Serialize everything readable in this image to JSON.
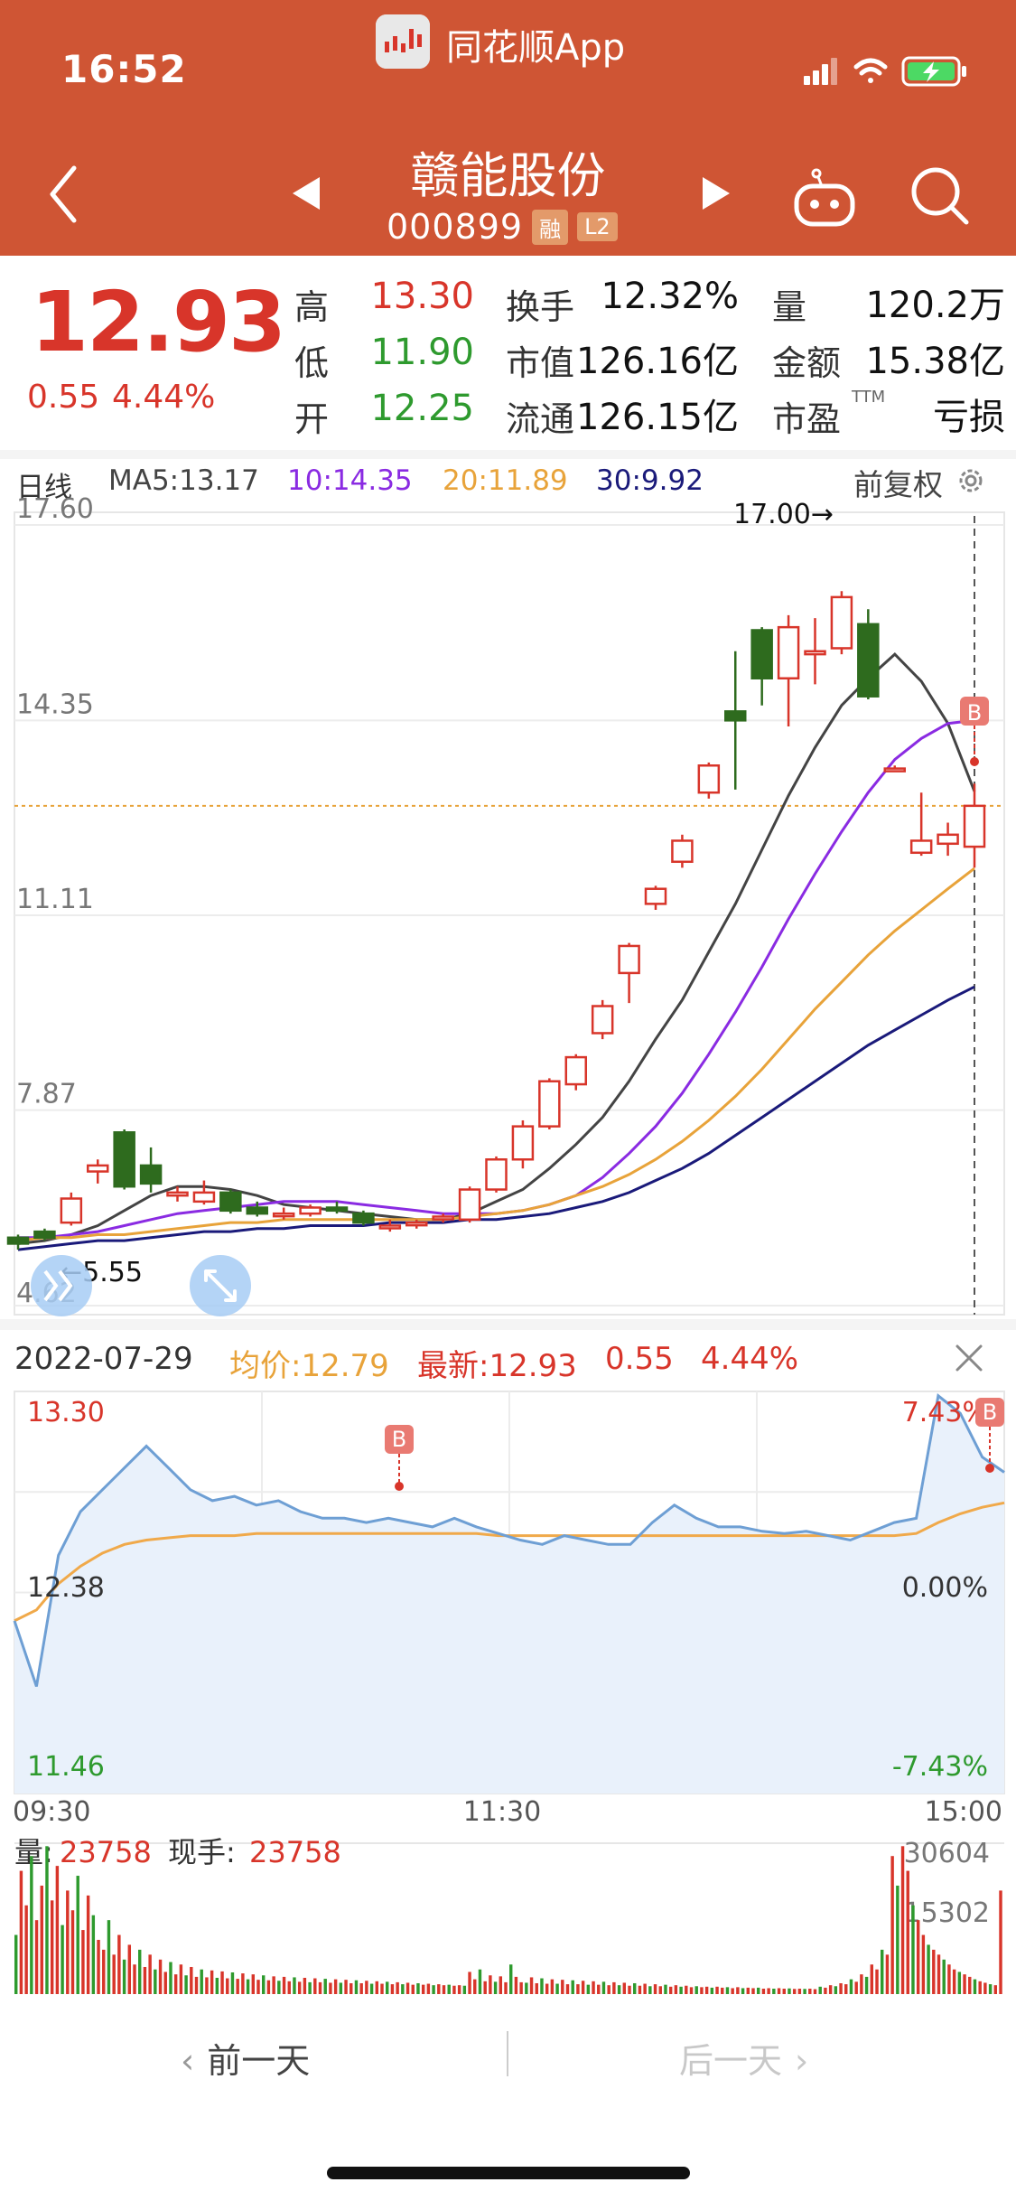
{
  "status_bar": {
    "time": "16:52"
  },
  "app": {
    "name": "同花顺App"
  },
  "stock": {
    "name": "赣能股份",
    "code": "000899",
    "tags": [
      "融",
      "L2"
    ]
  },
  "quote": {
    "price": "12.93",
    "change": "0.55",
    "change_pct": "4.44%",
    "fields": [
      {
        "label": "高",
        "value": "13.30",
        "color": "#d8352a"
      },
      {
        "label": "低",
        "value": "11.90",
        "color": "#2e9a2e"
      },
      {
        "label": "开",
        "value": "12.25",
        "color": "#2e9a2e"
      },
      {
        "label": "换手",
        "value": "12.32%",
        "color": "#111111"
      },
      {
        "label": "市值",
        "value": "126.16亿",
        "color": "#111111"
      },
      {
        "label": "流通",
        "value": "126.15亿",
        "color": "#111111"
      },
      {
        "label": "量",
        "value": "120.2万",
        "color": "#111111"
      },
      {
        "label": "金额",
        "value": "15.38亿",
        "color": "#111111"
      },
      {
        "label": "市盈",
        "value": "亏损",
        "color": "#111111",
        "sup": "TTM"
      }
    ]
  },
  "kline": {
    "period": "日线",
    "ma": [
      {
        "label": "MA5:13.17",
        "color": "#444444"
      },
      {
        "label": "10:14.35",
        "color": "#8a2be2"
      },
      {
        "label": "20:11.89",
        "color": "#e8a33a"
      },
      {
        "label": "30:9.92",
        "color": "#1a1a7a"
      }
    ],
    "adjust": "前复权",
    "y_ticks": [
      "17.60",
      "14.35",
      "11.11",
      "7.87",
      "4.62"
    ],
    "y_range": [
      4.62,
      17.6
    ],
    "high_annotation": "17.00→",
    "low_annotation": "←5.55",
    "buy_marker": "B"
  },
  "chart_data": [
    {
      "type": "candlestick",
      "title": "日线",
      "ylim": [
        4.62,
        17.6
      ],
      "y_ticks": [
        17.6,
        14.35,
        11.11,
        7.87,
        4.62
      ],
      "annotations": [
        "17.00→",
        "←5.55"
      ],
      "candles": [
        {
          "o": 5.75,
          "h": 5.8,
          "c": 5.65,
          "l": 5.55
        },
        {
          "o": 5.85,
          "h": 5.9,
          "c": 5.75,
          "l": 5.7
        },
        {
          "o": 6.0,
          "h": 6.5,
          "c": 6.4,
          "l": 5.95
        },
        {
          "o": 6.85,
          "h": 7.05,
          "c": 6.95,
          "l": 6.65
        },
        {
          "o": 7.5,
          "h": 7.55,
          "c": 6.6,
          "l": 6.55
        },
        {
          "o": 6.95,
          "h": 7.25,
          "c": 6.65,
          "l": 6.5
        },
        {
          "o": 6.45,
          "h": 6.6,
          "c": 6.5,
          "l": 6.35
        },
        {
          "o": 6.35,
          "h": 6.7,
          "c": 6.5,
          "l": 6.3
        },
        {
          "o": 6.5,
          "h": 6.55,
          "c": 6.2,
          "l": 6.15
        },
        {
          "o": 6.25,
          "h": 6.35,
          "c": 6.15,
          "l": 6.1
        },
        {
          "o": 6.15,
          "h": 6.25,
          "c": 6.15,
          "l": 6.05
        },
        {
          "o": 6.15,
          "h": 6.3,
          "c": 6.25,
          "l": 6.1
        },
        {
          "o": 6.25,
          "h": 6.35,
          "c": 6.2,
          "l": 6.15
        },
        {
          "o": 6.15,
          "h": 6.2,
          "c": 6.0,
          "l": 5.95
        },
        {
          "o": 5.95,
          "h": 6.05,
          "c": 5.95,
          "l": 5.85
        },
        {
          "o": 6.0,
          "h": 6.05,
          "c": 6.0,
          "l": 5.9
        },
        {
          "o": 6.1,
          "h": 6.15,
          "c": 6.1,
          "l": 6.0
        },
        {
          "o": 6.05,
          "h": 6.6,
          "c": 6.55,
          "l": 6.0
        },
        {
          "o": 6.55,
          "h": 7.1,
          "c": 7.05,
          "l": 6.5
        },
        {
          "o": 7.05,
          "h": 7.7,
          "c": 7.6,
          "l": 6.9
        },
        {
          "o": 7.6,
          "h": 8.4,
          "c": 8.35,
          "l": 7.55
        },
        {
          "o": 8.3,
          "h": 8.8,
          "c": 8.75,
          "l": 8.2
        },
        {
          "o": 9.15,
          "h": 9.7,
          "c": 9.6,
          "l": 9.05
        },
        {
          "o": 10.15,
          "h": 10.65,
          "c": 10.6,
          "l": 9.65
        },
        {
          "o": 11.3,
          "h": 11.6,
          "c": 11.55,
          "l": 11.2
        },
        {
          "o": 12.0,
          "h": 12.45,
          "c": 12.35,
          "l": 11.9
        },
        {
          "o": 13.15,
          "h": 13.65,
          "c": 13.6,
          "l": 13.05
        },
        {
          "o": 14.5,
          "h": 15.5,
          "c": 14.35,
          "l": 13.2
        },
        {
          "o": 15.85,
          "h": 15.9,
          "c": 15.05,
          "l": 14.6
        },
        {
          "o": 15.05,
          "h": 16.1,
          "c": 15.9,
          "l": 14.25
        },
        {
          "o": 15.45,
          "h": 16.05,
          "c": 15.5,
          "l": 14.95
        },
        {
          "o": 15.55,
          "h": 16.5,
          "c": 16.4,
          "l": 15.45
        },
        {
          "o": 15.95,
          "h": 16.2,
          "c": 14.75,
          "l": 14.7
        },
        {
          "o": 13.55,
          "h": 13.6,
          "c": 13.55,
          "l": 13.5
        },
        {
          "o": 12.15,
          "h": 13.15,
          "c": 12.35,
          "l": 12.1
        },
        {
          "o": 12.3,
          "h": 12.65,
          "c": 12.45,
          "l": 12.1
        },
        {
          "o": 12.25,
          "h": 13.3,
          "c": 12.93,
          "l": 11.9
        }
      ],
      "series": [
        {
          "name": "MA5",
          "values": [
            5.65,
            5.7,
            5.8,
            5.95,
            6.2,
            6.45,
            6.6,
            6.6,
            6.55,
            6.45,
            6.3,
            6.25,
            6.2,
            6.15,
            6.1,
            6.05,
            6.05,
            6.15,
            6.35,
            6.55,
            6.9,
            7.3,
            7.75,
            8.35,
            9.05,
            9.7,
            10.5,
            11.3,
            12.2,
            13.1,
            13.9,
            14.6,
            15.05,
            15.45,
            15.0,
            14.3,
            13.17
          ]
        },
        {
          "name": "MA10",
          "values": [
            5.75,
            5.75,
            5.8,
            5.85,
            5.95,
            6.05,
            6.15,
            6.2,
            6.25,
            6.3,
            6.35,
            6.35,
            6.35,
            6.3,
            6.25,
            6.2,
            6.15,
            6.15,
            6.15,
            6.2,
            6.3,
            6.45,
            6.75,
            7.15,
            7.6,
            8.15,
            8.8,
            9.5,
            10.25,
            11.05,
            11.8,
            12.5,
            13.15,
            13.7,
            14.05,
            14.3,
            14.35
          ]
        },
        {
          "name": "MA20",
          "values": [
            5.7,
            5.75,
            5.75,
            5.8,
            5.8,
            5.85,
            5.9,
            5.95,
            6.0,
            6.0,
            6.05,
            6.05,
            6.05,
            6.05,
            6.05,
            6.05,
            6.05,
            6.1,
            6.15,
            6.2,
            6.3,
            6.45,
            6.6,
            6.8,
            7.05,
            7.35,
            7.7,
            8.1,
            8.55,
            9.05,
            9.55,
            10.0,
            10.45,
            10.85,
            11.2,
            11.55,
            11.89
          ]
        },
        {
          "name": "MA30",
          "values": [
            5.55,
            5.6,
            5.65,
            5.7,
            5.7,
            5.75,
            5.8,
            5.85,
            5.85,
            5.9,
            5.9,
            5.95,
            5.95,
            5.95,
            6.0,
            6.0,
            6.0,
            6.05,
            6.05,
            6.1,
            6.15,
            6.25,
            6.35,
            6.5,
            6.7,
            6.9,
            7.15,
            7.45,
            7.75,
            8.05,
            8.35,
            8.65,
            8.95,
            9.2,
            9.45,
            9.7,
            9.92
          ]
        }
      ]
    },
    {
      "type": "line",
      "title": "2022-07-29",
      "x_ticks": [
        "09:30",
        "11:30",
        "15:00"
      ],
      "y_left_ticks": [
        "13.30",
        "12.38",
        "11.46"
      ],
      "y_right_ticks": [
        "7.43%",
        "0.00%",
        "-7.43%"
      ],
      "ylim": [
        11.46,
        13.3
      ],
      "series": [
        {
          "name": "最新",
          "values": [
            12.25,
            11.95,
            12.55,
            12.75,
            12.85,
            12.95,
            13.05,
            12.95,
            12.85,
            12.8,
            12.82,
            12.78,
            12.8,
            12.75,
            12.72,
            12.72,
            12.7,
            12.72,
            12.7,
            12.68,
            12.72,
            12.68,
            12.65,
            12.62,
            12.6,
            12.64,
            12.62,
            12.6,
            12.6,
            12.7,
            12.78,
            12.72,
            12.68,
            12.68,
            12.66,
            12.65,
            12.66,
            12.64,
            12.62,
            12.66,
            12.7,
            12.72,
            13.28,
            13.2,
            13.0,
            12.93
          ]
        },
        {
          "name": "均价",
          "values": [
            12.25,
            12.3,
            12.42,
            12.5,
            12.56,
            12.6,
            12.62,
            12.63,
            12.64,
            12.64,
            12.64,
            12.65,
            12.65,
            12.65,
            12.65,
            12.65,
            12.65,
            12.65,
            12.65,
            12.65,
            12.65,
            12.65,
            12.64,
            12.64,
            12.64,
            12.64,
            12.64,
            12.64,
            12.64,
            12.64,
            12.64,
            12.64,
            12.64,
            12.64,
            12.64,
            12.64,
            12.64,
            12.64,
            12.64,
            12.64,
            12.64,
            12.65,
            12.7,
            12.74,
            12.77,
            12.79
          ]
        }
      ]
    },
    {
      "type": "bar",
      "title": "量",
      "y_ticks": [
        "30604",
        "15302"
      ],
      "ylim": [
        0,
        30604
      ],
      "values": [
        12000,
        25000,
        18000,
        28000,
        15000,
        22000,
        30000,
        19000,
        26000,
        14000,
        21000,
        17000,
        24000,
        13000,
        20000,
        16000,
        11000,
        9000,
        15000,
        8000,
        12000,
        7000,
        10000,
        6000,
        9000,
        5500,
        8000,
        5000,
        7000,
        4500,
        6500,
        4000,
        6000,
        3800,
        5500,
        3500,
        5000,
        3400,
        4800,
        3300,
        4600,
        3200,
        4400,
        3100,
        4200,
        3000,
        4000,
        2900,
        3800,
        2800,
        3600,
        2700,
        3500,
        2600,
        3400,
        2500,
        3300,
        2400,
        3200,
        2400,
        3100,
        2300,
        3000,
        2300,
        2900,
        2200,
        2800,
        2200,
        2700,
        2100,
        2600,
        2100,
        2500,
        2000,
        2400,
        2000,
        2300,
        1900,
        2200,
        1900,
        2100,
        1800,
        2000,
        1800,
        1900,
        1700,
        1800,
        1700,
        4500,
        3000,
        5000,
        2600,
        3800,
        2500,
        3600,
        2400,
        6000,
        3500,
        2400,
        2300,
        3400,
        2200,
        3200,
        2100,
        3000,
        2100,
        2900,
        2000,
        2800,
        2000,
        2700,
        1900,
        2600,
        1900,
        2500,
        1800,
        2400,
        1800,
        2300,
        1700,
        2200,
        1700,
        2100,
        1600,
        2000,
        1600,
        1900,
        1500,
        1800,
        1500,
        1700,
        1400,
        1600,
        1400,
        1500,
        1300,
        1500,
        1300,
        1400,
        1200,
        1400,
        1200,
        1300,
        1200,
        1300,
        1100,
        1200,
        1100,
        1200,
        1100,
        1150,
        1050,
        1100,
        1050,
        1100,
        1000,
        1500,
        1300,
        1800,
        1600,
        2200,
        2000,
        3000,
        2500,
        4000,
        3500,
        6000,
        5000,
        9000,
        8000,
        28000,
        22000,
        30000,
        25000,
        18000,
        15000,
        12000,
        10000,
        9000,
        8000,
        7000,
        6000,
        5000,
        4500,
        4000,
        3500,
        3000,
        2600,
        2300,
        2000,
        1800,
        21000
      ],
      "readout": {
        "label": "量:",
        "value": "23758",
        "label2": "现手:",
        "value2": "23758"
      }
    }
  ],
  "intraday": {
    "date": "2022-07-29",
    "avg_label": "均价:12.79",
    "last_label": "最新:12.93",
    "change": "0.55",
    "change_pct": "4.44%",
    "y_left": [
      "13.30",
      "12.38",
      "11.46"
    ],
    "y_right": [
      "7.43%",
      "0.00%",
      "-7.43%"
    ],
    "x_ticks": [
      "09:30",
      "11:30",
      "15:00"
    ],
    "buy_marker": "B"
  },
  "volume": {
    "label": "量:",
    "value": "23758",
    "label2": "现手:",
    "value2": "23758",
    "y_ticks": [
      "30604",
      "15302"
    ]
  },
  "nav": {
    "prev": "前一天",
    "next": "后一天"
  },
  "colors": {
    "header": "#cf5534",
    "up": "#d8352a",
    "down": "#2e6b1e",
    "line": "#6e9fd4",
    "avg": "#f0a94a"
  }
}
